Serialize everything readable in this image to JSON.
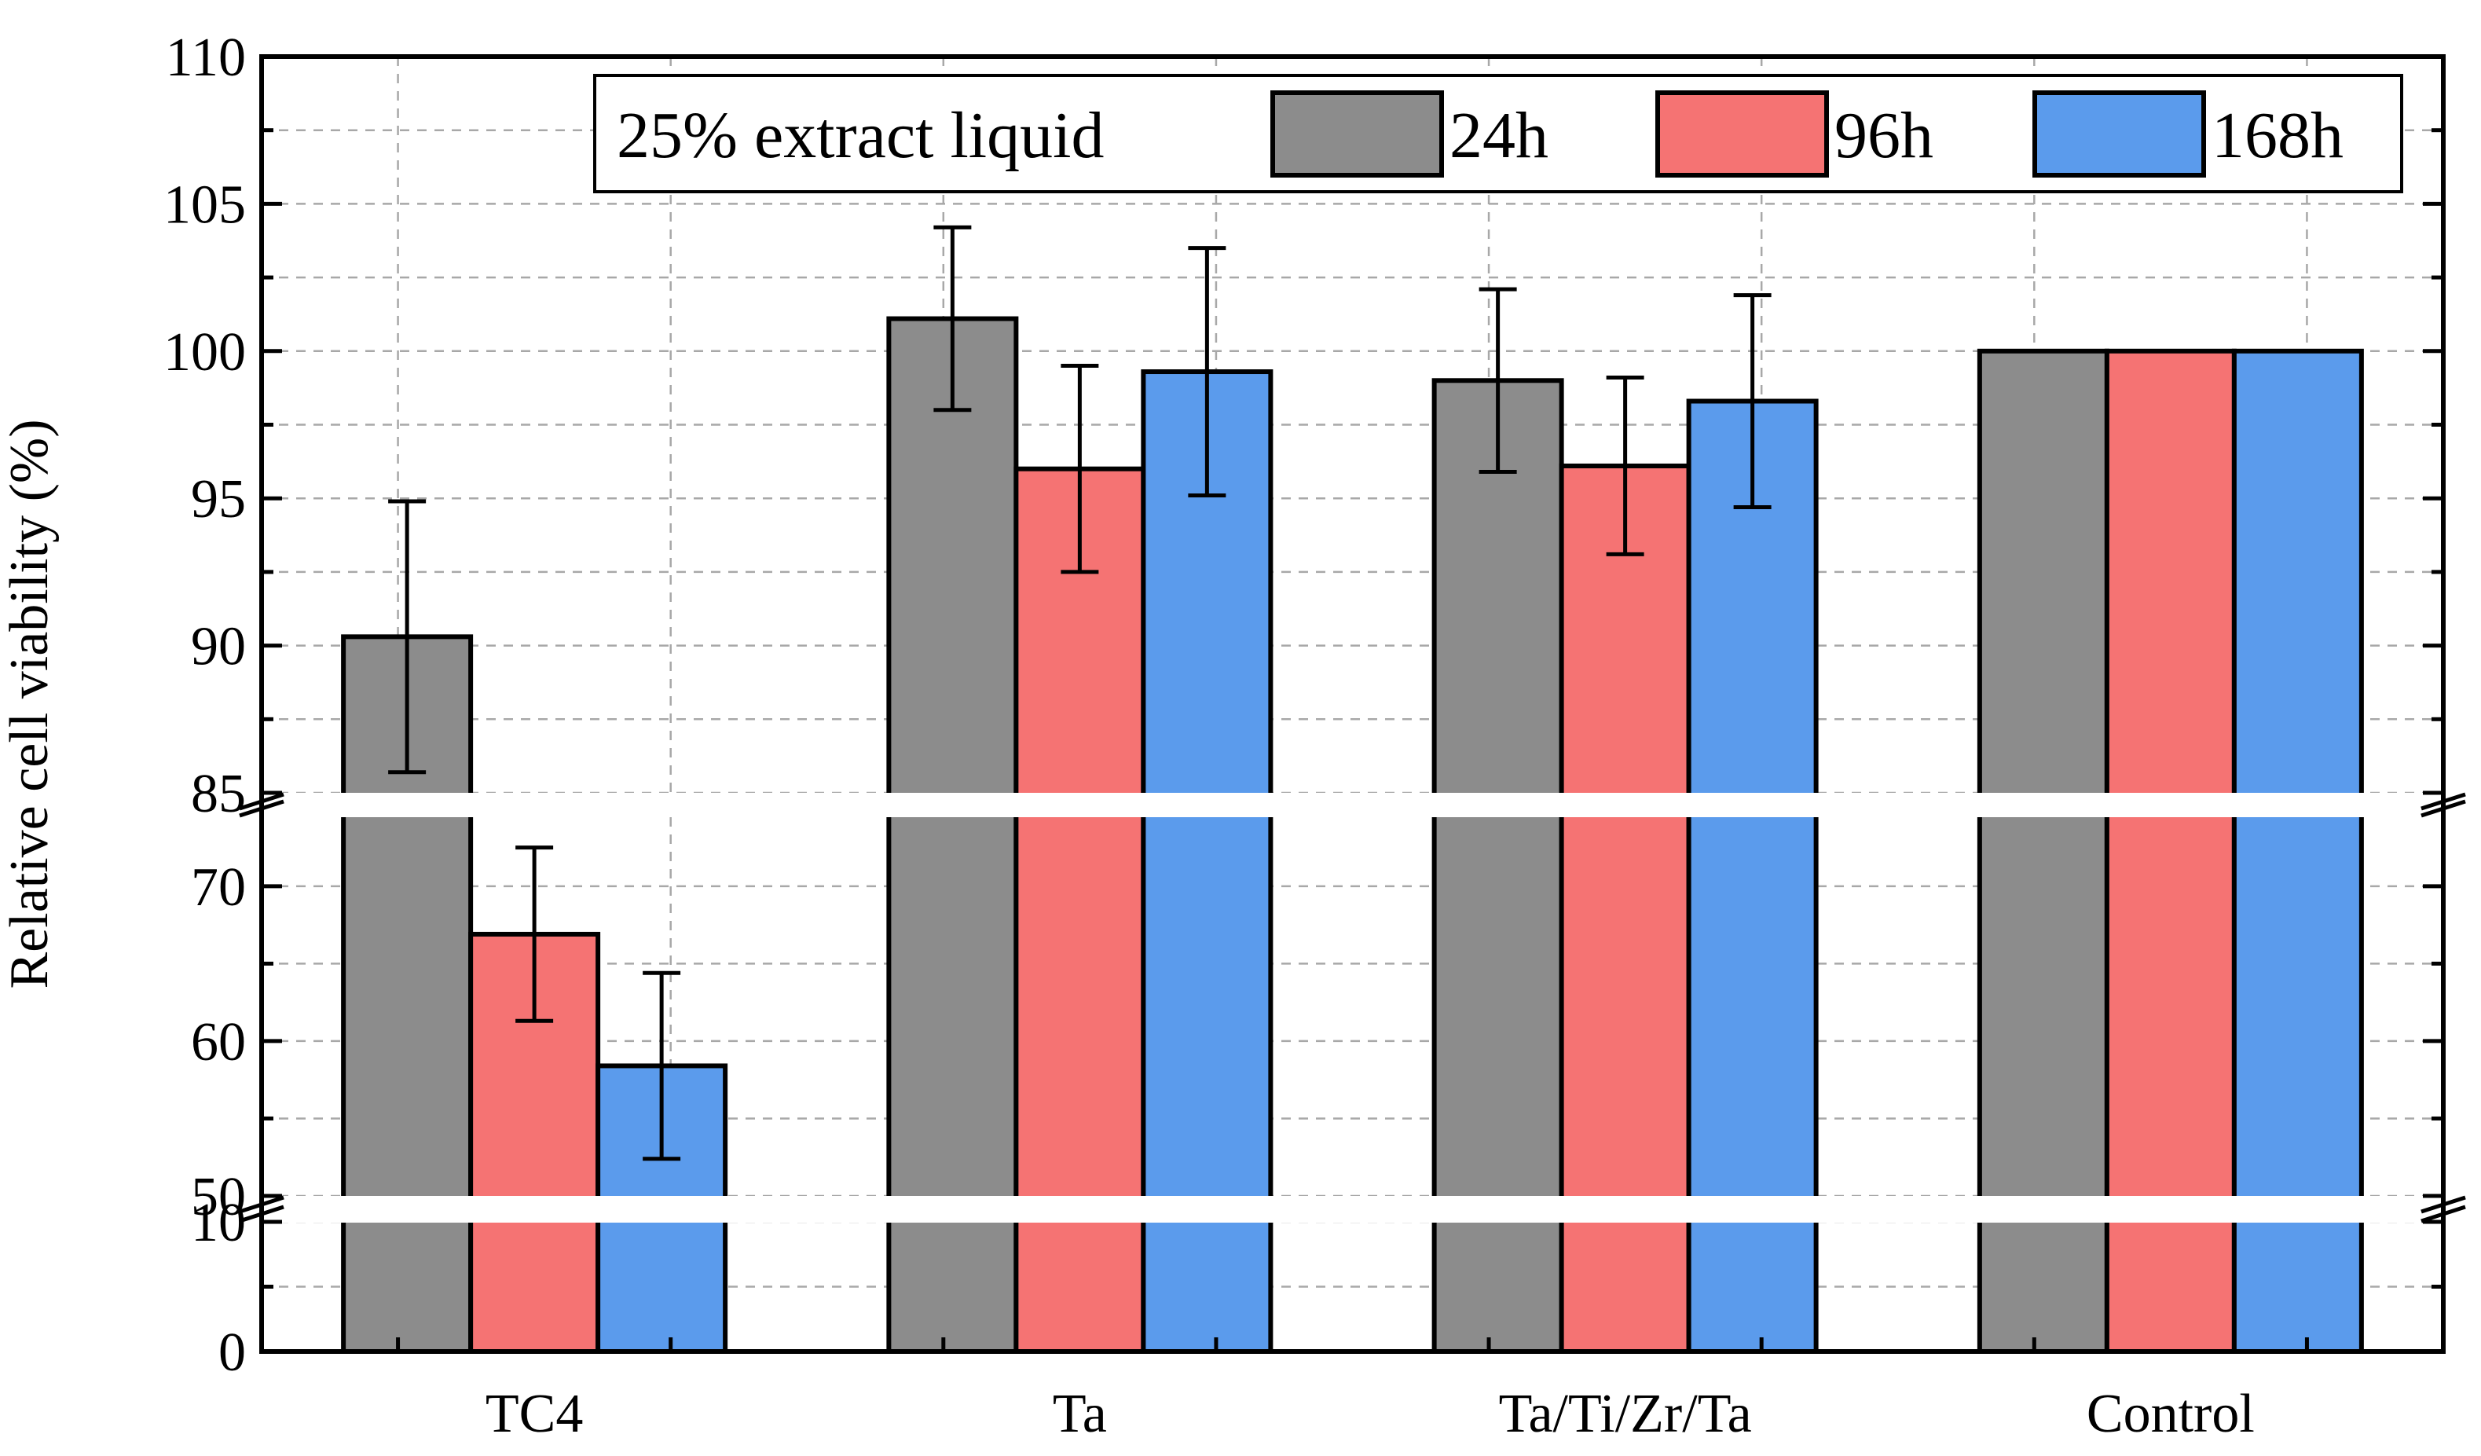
{
  "chart_data": {
    "type": "bar",
    "ylabel": "Relative cell viability (%)",
    "xlabel": "",
    "legend_title": "25% extract liquid",
    "legend_position": "top-right",
    "categories": [
      "TC4",
      "Ta",
      "Ta/Ti/Zr/Ta",
      "Control"
    ],
    "series": [
      {
        "name": "24h",
        "color": "#8c8c8c",
        "values": [
          90.3,
          101.1,
          99.0,
          100.0
        ],
        "errors": [
          4.6,
          3.1,
          3.1,
          0
        ]
      },
      {
        "name": "96h",
        "color": "#f57373",
        "values": [
          66.9,
          96.0,
          96.1,
          100.0
        ],
        "errors": [
          5.6,
          3.5,
          3.0,
          0
        ]
      },
      {
        "name": "168h",
        "color": "#5b9bec",
        "values": [
          58.4,
          99.3,
          98.3,
          100.0
        ],
        "errors": [
          6.0,
          4.2,
          3.6,
          0
        ]
      }
    ],
    "y_segments": [
      {
        "range": [
          0,
          12
        ],
        "ticks": [
          0,
          10
        ]
      },
      {
        "range": [
          50,
          74
        ],
        "ticks": [
          50,
          60,
          70
        ]
      },
      {
        "range": [
          85,
          110
        ],
        "ticks": [
          85,
          90,
          95,
          100,
          105,
          110
        ]
      }
    ],
    "grid": true
  }
}
